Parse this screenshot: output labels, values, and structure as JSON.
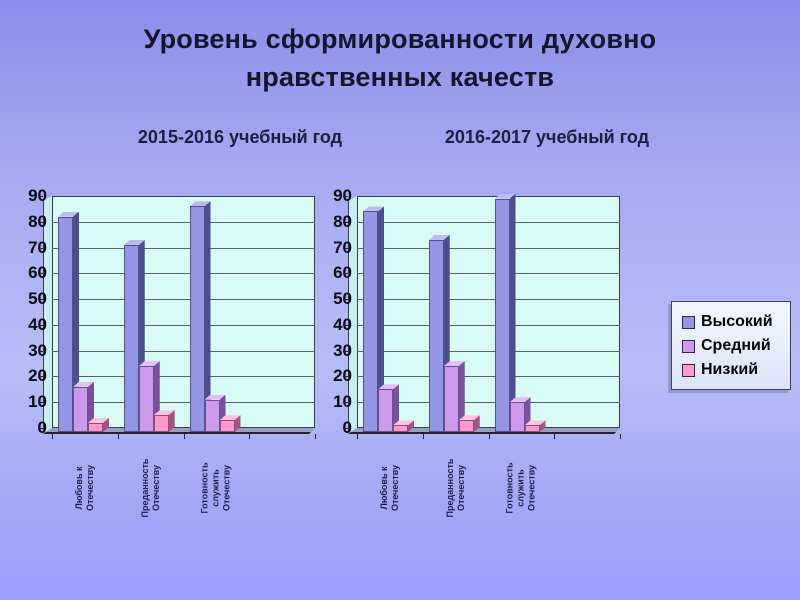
{
  "slide": {
    "title_line1": "Уровень сформированности духовно",
    "title_line2": "нравственных качеств",
    "background": {
      "top": "#8a8eea",
      "middle": "#b6bdf6",
      "bottom": "#999ffb"
    }
  },
  "legend": {
    "position": "right",
    "items": [
      {
        "label": "Высокий",
        "color": "#9595e6"
      },
      {
        "label": "Средний",
        "color": "#cc99ec"
      },
      {
        "label": "Низкий",
        "color": "#ff99cc"
      }
    ]
  },
  "chart_data": [
    {
      "type": "bar",
      "style": "3d-clustered-column",
      "title": "2015-2016 учебный год",
      "xlabel": "",
      "ylabel": "",
      "ylim": [
        0,
        90
      ],
      "ytick": 10,
      "grid": true,
      "category_slots": 4,
      "wall_color": "#d8fbf6",
      "categories": [
        [
          "Любовь к",
          "Отечеству"
        ],
        [
          "Преданность",
          "Отечеству"
        ],
        [
          "Готовность",
          "служить",
          "Отечеству"
        ]
      ],
      "series": [
        {
          "name": "Высокий",
          "values": [
            82,
            71,
            86
          ],
          "color": {
            "front": "#9595e6",
            "side": "#4e4e8f",
            "top": "#bcbcf4"
          }
        },
        {
          "name": "Средний",
          "values": [
            16,
            24,
            11
          ],
          "color": {
            "front": "#cc99ec",
            "side": "#7b4f9b",
            "top": "#e0c0f6"
          }
        },
        {
          "name": "Низкий",
          "values": [
            2,
            5,
            3
          ],
          "color": {
            "front": "#ff99cc",
            "side": "#a85280",
            "top": "#ffc2e0"
          }
        }
      ]
    },
    {
      "type": "bar",
      "style": "3d-clustered-column",
      "title": "2016-2017 учебный год",
      "xlabel": "",
      "ylabel": "",
      "ylim": [
        0,
        90
      ],
      "ytick": 10,
      "grid": true,
      "category_slots": 4,
      "wall_color": "#d8fbf6",
      "categories": [
        [
          "Любовь к",
          "Отечеству"
        ],
        [
          "Преданность",
          "Отечеству"
        ],
        [
          "Готовность",
          "служить",
          "Отечеству"
        ]
      ],
      "series": [
        {
          "name": "Высокий",
          "values": [
            84,
            73,
            89
          ],
          "color": {
            "front": "#9595e6",
            "side": "#4e4e8f",
            "top": "#bcbcf4"
          }
        },
        {
          "name": "Средний",
          "values": [
            15,
            24,
            10
          ],
          "color": {
            "front": "#cc99ec",
            "side": "#7b4f9b",
            "top": "#e0c0f6"
          }
        },
        {
          "name": "Низкий",
          "values": [
            1,
            3,
            1
          ],
          "color": {
            "front": "#ff99cc",
            "side": "#a85280",
            "top": "#ffc2e0"
          }
        }
      ]
    }
  ]
}
